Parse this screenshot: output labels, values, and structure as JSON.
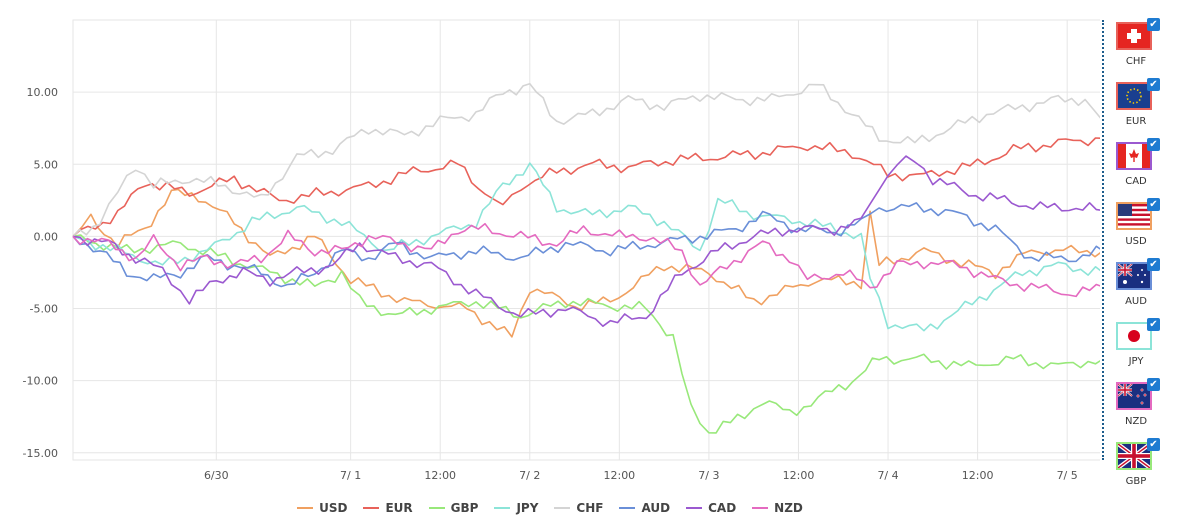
{
  "chart_data": {
    "type": "line",
    "ylim": [
      -15.5,
      15
    ],
    "yticks": [
      "10.00",
      "5.00",
      "0.00",
      "-5.00",
      "-10.00",
      "-15.00"
    ],
    "ytick_values": [
      10,
      5,
      0,
      -5,
      -10,
      -15
    ],
    "x_range": [
      0,
      115
    ],
    "xticks": [
      {
        "label": "6/30",
        "x": 16
      },
      {
        "label": "7/ 1",
        "x": 31
      },
      {
        "label": "12:00",
        "x": 41
      },
      {
        "label": "7/ 2",
        "x": 51
      },
      {
        "label": "12:00",
        "x": 61
      },
      {
        "label": "7/ 3",
        "x": 71
      },
      {
        "label": "12:00",
        "x": 81
      },
      {
        "label": "7/ 4",
        "x": 91
      },
      {
        "label": "12:00",
        "x": 101
      },
      {
        "label": "7/ 5",
        "x": 111
      }
    ],
    "grid": true,
    "legend": "bottom",
    "series": [
      {
        "name": "USD",
        "color": "#f0a060",
        "anchors": [
          [
            0,
            0
          ],
          [
            2,
            1.2
          ],
          [
            5,
            -0.5
          ],
          [
            8,
            0.5
          ],
          [
            11,
            3
          ],
          [
            14,
            2.8
          ],
          [
            18,
            1
          ],
          [
            22,
            -1.5
          ],
          [
            27,
            0
          ],
          [
            31,
            -3
          ],
          [
            37,
            -4.5
          ],
          [
            44,
            -5
          ],
          [
            49,
            -7
          ],
          [
            51,
            -3.5
          ],
          [
            56,
            -4.8
          ],
          [
            60,
            -4.5
          ],
          [
            66,
            -2
          ],
          [
            71,
            -2.5
          ],
          [
            76,
            -4.5
          ],
          [
            83,
            -3
          ],
          [
            88,
            -3.2
          ],
          [
            89,
            1.5
          ],
          [
            90,
            -2
          ],
          [
            95,
            -1
          ],
          [
            100,
            -2
          ],
          [
            103,
            -2.5
          ],
          [
            107,
            -1
          ],
          [
            115,
            -1
          ]
        ]
      },
      {
        "name": "EUR",
        "color": "#e8625a",
        "anchors": [
          [
            0,
            0
          ],
          [
            5,
            1.5
          ],
          [
            8,
            3.8
          ],
          [
            13,
            3
          ],
          [
            18,
            4
          ],
          [
            23,
            2.5
          ],
          [
            28,
            3
          ],
          [
            33,
            3.5
          ],
          [
            38,
            4.5
          ],
          [
            43,
            5
          ],
          [
            46,
            3
          ],
          [
            48,
            2
          ],
          [
            50,
            3.5
          ],
          [
            54,
            4.5
          ],
          [
            58,
            5
          ],
          [
            62,
            4.8
          ],
          [
            67,
            5.3
          ],
          [
            72,
            5.5
          ],
          [
            77,
            5.8
          ],
          [
            82,
            6.3
          ],
          [
            87,
            5.8
          ],
          [
            91,
            4.3
          ],
          [
            95,
            4.2
          ],
          [
            101,
            5
          ],
          [
            105,
            6
          ],
          [
            110,
            6.5
          ],
          [
            115,
            6.8
          ]
        ]
      },
      {
        "name": "GBP",
        "color": "#98e87a",
        "anchors": [
          [
            0,
            0
          ],
          [
            6,
            -1
          ],
          [
            12,
            -0.5
          ],
          [
            17,
            -1.5
          ],
          [
            22,
            -2.5
          ],
          [
            27,
            -3.5
          ],
          [
            30,
            -2.5
          ],
          [
            32,
            -4.5
          ],
          [
            36,
            -5.5
          ],
          [
            40,
            -5
          ],
          [
            45,
            -4.5
          ],
          [
            50,
            -5.5
          ],
          [
            55,
            -4.5
          ],
          [
            60,
            -4.8
          ],
          [
            64,
            -5
          ],
          [
            67,
            -7
          ],
          [
            69,
            -12
          ],
          [
            71,
            -13.5
          ],
          [
            75,
            -12.5
          ],
          [
            77,
            -11.3
          ],
          [
            80,
            -12.3
          ],
          [
            84,
            -11
          ],
          [
            87,
            -10
          ],
          [
            90,
            -8.5
          ],
          [
            95,
            -8.5
          ],
          [
            100,
            -9
          ],
          [
            105,
            -8.5
          ],
          [
            110,
            -9
          ],
          [
            115,
            -8.5
          ]
        ]
      },
      {
        "name": "JPY",
        "color": "#8ce4d8",
        "anchors": [
          [
            0,
            0
          ],
          [
            5,
            -1
          ],
          [
            10,
            -2
          ],
          [
            15,
            -1
          ],
          [
            20,
            1
          ],
          [
            25,
            2
          ],
          [
            30,
            1
          ],
          [
            35,
            -1
          ],
          [
            40,
            0
          ],
          [
            45,
            1
          ],
          [
            48,
            3.5
          ],
          [
            51,
            5
          ],
          [
            54,
            2
          ],
          [
            58,
            1.5
          ],
          [
            62,
            2
          ],
          [
            66,
            1
          ],
          [
            70,
            -1
          ],
          [
            72,
            2.5
          ],
          [
            76,
            1.5
          ],
          [
            82,
            1
          ],
          [
            88,
            0
          ],
          [
            89,
            -3
          ],
          [
            91,
            -6
          ],
          [
            95,
            -6.5
          ],
          [
            98,
            -5.5
          ],
          [
            102,
            -4
          ],
          [
            106,
            -2.5
          ],
          [
            110,
            -2
          ],
          [
            115,
            -2.5
          ]
        ]
      },
      {
        "name": "CHF",
        "color": "#d4d4d4",
        "anchors": [
          [
            0,
            0
          ],
          [
            3,
            1
          ],
          [
            5,
            3
          ],
          [
            7,
            5
          ],
          [
            9,
            3.5
          ],
          [
            13,
            4
          ],
          [
            17,
            3.5
          ],
          [
            21,
            2.5
          ],
          [
            25,
            5.5
          ],
          [
            29,
            6
          ],
          [
            33,
            7.5
          ],
          [
            37,
            7
          ],
          [
            41,
            8
          ],
          [
            45,
            8.5
          ],
          [
            48,
            10
          ],
          [
            51,
            10.5
          ],
          [
            54,
            8
          ],
          [
            58,
            8.5
          ],
          [
            62,
            9.5
          ],
          [
            66,
            9
          ],
          [
            70,
            9.8
          ],
          [
            74,
            9.5
          ],
          [
            78,
            9.5
          ],
          [
            83,
            10.5
          ],
          [
            87,
            8.5
          ],
          [
            90,
            6.8
          ],
          [
            94,
            6.5
          ],
          [
            98,
            7.5
          ],
          [
            102,
            8.5
          ],
          [
            106,
            9
          ],
          [
            110,
            9.5
          ],
          [
            113,
            9.5
          ],
          [
            115,
            8
          ]
        ]
      },
      {
        "name": "AUD",
        "color": "#6a8fd8",
        "anchors": [
          [
            0,
            0
          ],
          [
            3,
            -1
          ],
          [
            6,
            -2.5
          ],
          [
            9,
            -3
          ],
          [
            12,
            -2.5
          ],
          [
            15,
            -1.5
          ],
          [
            18,
            -2
          ],
          [
            21,
            -2.5
          ],
          [
            24,
            -3.5
          ],
          [
            27,
            -2.5
          ],
          [
            30,
            -1
          ],
          [
            33,
            -1.5
          ],
          [
            36,
            -0.5
          ],
          [
            40,
            -1.5
          ],
          [
            45,
            -1
          ],
          [
            50,
            -1.5
          ],
          [
            55,
            -0.5
          ],
          [
            60,
            -1
          ],
          [
            65,
            -0.5
          ],
          [
            70,
            0
          ],
          [
            74,
            0.5
          ],
          [
            77,
            1.5
          ],
          [
            81,
            0.5
          ],
          [
            85,
            0.3
          ],
          [
            88,
            1
          ],
          [
            90,
            2
          ],
          [
            95,
            2
          ],
          [
            99,
            1.5
          ],
          [
            103,
            0.5
          ],
          [
            107,
            -1.5
          ],
          [
            112,
            -1.5
          ],
          [
            115,
            -1
          ]
        ]
      },
      {
        "name": "CAD",
        "color": "#9b59d0",
        "anchors": [
          [
            0,
            0
          ],
          [
            4,
            -0.5
          ],
          [
            7,
            -1.5
          ],
          [
            9,
            -2
          ],
          [
            11,
            -3
          ],
          [
            13,
            -4.5
          ],
          [
            16,
            -3
          ],
          [
            19,
            -2.5
          ],
          [
            22,
            -3
          ],
          [
            25,
            -2.5
          ],
          [
            29,
            -2
          ],
          [
            32,
            -0.5
          ],
          [
            36,
            -1.5
          ],
          [
            40,
            -2
          ],
          [
            45,
            -4
          ],
          [
            50,
            -5.5
          ],
          [
            55,
            -5
          ],
          [
            60,
            -6
          ],
          [
            64,
            -5.5
          ],
          [
            68,
            -2.5
          ],
          [
            72,
            -1
          ],
          [
            76,
            0
          ],
          [
            80,
            0.5
          ],
          [
            85,
            0.5
          ],
          [
            88,
            1
          ],
          [
            90,
            3.5
          ],
          [
            92,
            5
          ],
          [
            94,
            5.3
          ],
          [
            96,
            4
          ],
          [
            100,
            3
          ],
          [
            104,
            2.5
          ],
          [
            108,
            2
          ],
          [
            112,
            2
          ],
          [
            115,
            1.8
          ]
        ]
      },
      {
        "name": "NZD",
        "color": "#e46ac0",
        "anchors": [
          [
            0,
            0
          ],
          [
            4,
            -0.5
          ],
          [
            7,
            -1.5
          ],
          [
            9,
            -0.3
          ],
          [
            12,
            -2
          ],
          [
            15,
            -1.5
          ],
          [
            18,
            -2
          ],
          [
            21,
            -1.5
          ],
          [
            24,
            0
          ],
          [
            27,
            -1
          ],
          [
            30,
            -1
          ],
          [
            33,
            0
          ],
          [
            37,
            -0.5
          ],
          [
            40,
            -1
          ],
          [
            43,
            0.5
          ],
          [
            46,
            0.5
          ],
          [
            50,
            0
          ],
          [
            54,
            -0.5
          ],
          [
            57,
            0.5
          ],
          [
            61,
            0
          ],
          [
            64,
            0
          ],
          [
            68,
            -1
          ],
          [
            70,
            -3.5
          ],
          [
            73,
            -2
          ],
          [
            77,
            -0.5
          ],
          [
            80,
            -1.5
          ],
          [
            82,
            -3
          ],
          [
            86,
            -2.5
          ],
          [
            89,
            -3.5
          ],
          [
            92,
            -2
          ],
          [
            95,
            -1.8
          ],
          [
            99,
            -2
          ],
          [
            103,
            -3
          ],
          [
            107,
            -3.5
          ],
          [
            112,
            -4
          ],
          [
            115,
            -3.5
          ]
        ]
      }
    ]
  },
  "legend": [
    {
      "label": "USD",
      "color": "#f0a060"
    },
    {
      "label": "EUR",
      "color": "#e8625a"
    },
    {
      "label": "GBP",
      "color": "#98e87a"
    },
    {
      "label": "JPY",
      "color": "#8ce4d8"
    },
    {
      "label": "CHF",
      "color": "#d4d4d4"
    },
    {
      "label": "AUD",
      "color": "#6a8fd8"
    },
    {
      "label": "CAD",
      "color": "#9b59d0"
    },
    {
      "label": "NZD",
      "color": "#e46ac0"
    }
  ],
  "flags": [
    {
      "label": "CHF",
      "icon": "switzerland-flag-icon",
      "border": "#e8625a",
      "checked": true
    },
    {
      "label": "EUR",
      "icon": "eu-flag-icon",
      "border": "#e8625a",
      "checked": true
    },
    {
      "label": "CAD",
      "icon": "canada-flag-icon",
      "border": "#9b59d0",
      "checked": true
    },
    {
      "label": "USD",
      "icon": "usa-flag-icon",
      "border": "#f0a060",
      "checked": true
    },
    {
      "label": "AUD",
      "icon": "australia-flag-icon",
      "border": "#6a8fd8",
      "checked": true
    },
    {
      "label": "JPY",
      "icon": "japan-flag-icon",
      "border": "#8ce4d8",
      "checked": true
    },
    {
      "label": "NZD",
      "icon": "new-zealand-flag-icon",
      "border": "#e46ac0",
      "checked": true
    },
    {
      "label": "GBP",
      "icon": "uk-flag-icon",
      "border": "#98e87a",
      "checked": true
    }
  ],
  "check_glyph": "✔"
}
